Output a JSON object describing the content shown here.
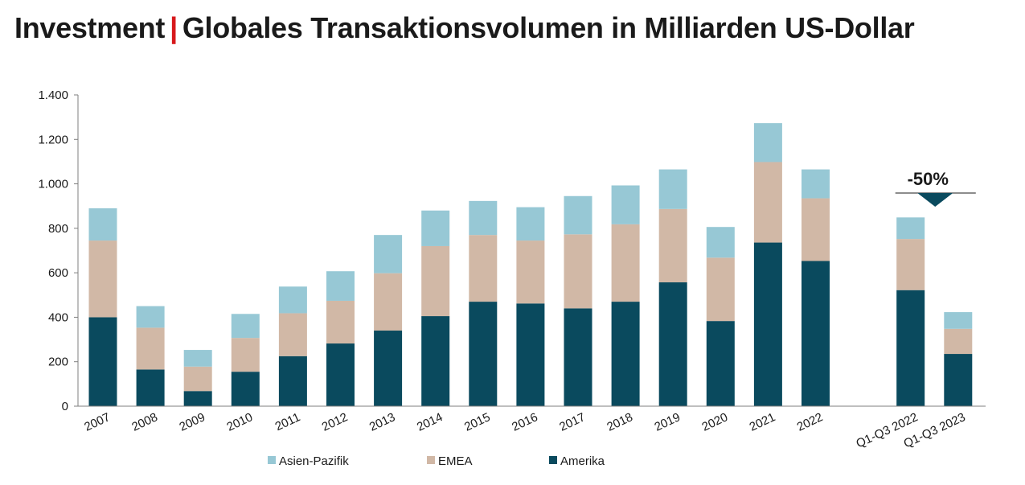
{
  "title": {
    "part1": "Investment",
    "separator": "|",
    "part2": "Globales Transaktionsvolumen in Milliarden US-Dollar"
  },
  "chart_data": {
    "type": "bar",
    "stacked": true,
    "categories": [
      "2007",
      "2008",
      "2009",
      "2010",
      "2011",
      "2012",
      "2013",
      "2014",
      "2015",
      "2016",
      "2017",
      "2018",
      "2019",
      "2020",
      "2021",
      "2022",
      "",
      "Q1-Q3 2022",
      "Q1-Q3 2023"
    ],
    "series": [
      {
        "name": "Amerika",
        "color": "#0a4a5e",
        "values": [
          400,
          165,
          68,
          155,
          225,
          282,
          340,
          405,
          470,
          462,
          440,
          470,
          557,
          383,
          736,
          653,
          null,
          522,
          235
        ]
      },
      {
        "name": "EMEA",
        "color": "#d1b8a6",
        "values": [
          345,
          188,
          110,
          152,
          193,
          192,
          258,
          315,
          300,
          283,
          333,
          348,
          330,
          285,
          362,
          282,
          null,
          230,
          113
        ]
      },
      {
        "name": "Asien-Pazifik",
        "color": "#97c8d5",
        "values": [
          145,
          97,
          75,
          108,
          120,
          133,
          172,
          160,
          153,
          150,
          172,
          175,
          178,
          138,
          175,
          130,
          null,
          97,
          75
        ]
      }
    ],
    "ylim": [
      0,
      1400
    ],
    "yticks": [
      {
        "value": 0,
        "label": "0"
      },
      {
        "value": 200,
        "label": "200"
      },
      {
        "value": 400,
        "label": "400"
      },
      {
        "value": 600,
        "label": "600"
      },
      {
        "value": 800,
        "label": "800"
      },
      {
        "value": 1000,
        "label": "1.000"
      },
      {
        "value": 1200,
        "label": "1.200"
      },
      {
        "value": 1400,
        "label": "1.400"
      }
    ],
    "grid": false,
    "legend": {
      "position": "bottom",
      "entries": [
        "Asien-Pazifik",
        "EMEA",
        "Amerika"
      ]
    },
    "annotation": {
      "text": "-50%",
      "between": [
        "Q1-Q3 2022",
        "Q1-Q3 2023"
      ],
      "marker_color": "#0a4a5e"
    }
  }
}
